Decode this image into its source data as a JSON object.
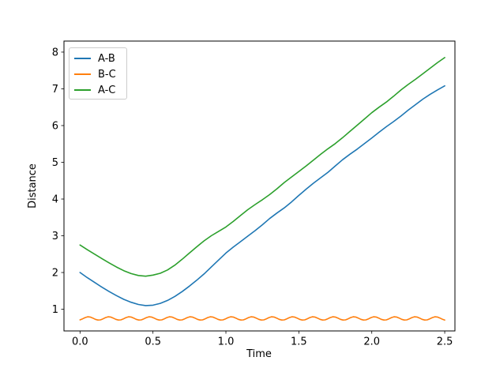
{
  "chart_data": {
    "type": "line",
    "title": "",
    "xlabel": "Time",
    "ylabel": "Distance",
    "xlim": [
      -0.11,
      2.57
    ],
    "ylim": [
      0.41,
      8.3
    ],
    "grid": false,
    "legend": {
      "position": "upper left",
      "entries": [
        "A-B",
        "B-C",
        "A-C"
      ]
    },
    "x_tick_values": [
      0.0,
      0.5,
      1.0,
      1.5,
      2.0,
      2.5
    ],
    "x_tick_labels": [
      "0.0",
      "0.5",
      "1.0",
      "1.5",
      "2.0",
      "2.5"
    ],
    "y_tick_values": [
      1,
      2,
      3,
      4,
      5,
      6,
      7,
      8
    ],
    "y_tick_labels": [
      "1",
      "2",
      "3",
      "4",
      "5",
      "6",
      "7",
      "8"
    ],
    "series": [
      {
        "name": "A-B",
        "color": "#1f77b4",
        "x": [
          0,
          0.05,
          0.1,
          0.15,
          0.2,
          0.25,
          0.3,
          0.35,
          0.4,
          0.45,
          0.5,
          0.55,
          0.6,
          0.65,
          0.7,
          0.75,
          0.8,
          0.85,
          0.9,
          0.95,
          1.0,
          1.05,
          1.1,
          1.15,
          1.2,
          1.25,
          1.3,
          1.35,
          1.4,
          1.45,
          1.5,
          1.55,
          1.6,
          1.65,
          1.7,
          1.75,
          1.8,
          1.85,
          1.9,
          1.95,
          2.0,
          2.05,
          2.1,
          2.15,
          2.2,
          2.25,
          2.3,
          2.35,
          2.4,
          2.45,
          2.5
        ],
        "y": [
          2.0,
          1.86,
          1.73,
          1.6,
          1.48,
          1.37,
          1.27,
          1.19,
          1.13,
          1.1,
          1.11,
          1.16,
          1.24,
          1.35,
          1.48,
          1.63,
          1.79,
          1.96,
          2.15,
          2.34,
          2.53,
          2.69,
          2.84,
          2.99,
          3.14,
          3.3,
          3.47,
          3.62,
          3.76,
          3.92,
          4.1,
          4.27,
          4.43,
          4.58,
          4.73,
          4.9,
          5.07,
          5.22,
          5.36,
          5.51,
          5.66,
          5.82,
          5.97,
          6.11,
          6.26,
          6.42,
          6.57,
          6.72,
          6.85,
          6.97,
          7.08
        ]
      },
      {
        "name": "B-C",
        "color": "#ff7f0e",
        "x": [
          0,
          0.0175,
          0.035,
          0.0525,
          0.07,
          0.0875,
          0.105,
          0.1225,
          0.14,
          0.1575,
          0.175,
          0.1925,
          0.21,
          0.2275,
          0.245,
          0.2625,
          0.28,
          0.2975,
          0.315,
          0.3325,
          0.35,
          0.3675,
          0.385,
          0.4025,
          0.42,
          0.4375,
          0.455,
          0.4725,
          0.49,
          0.5075,
          0.525,
          0.5425,
          0.56,
          0.5775,
          0.595,
          0.6125,
          0.63,
          0.6475,
          0.665,
          0.6825,
          0.7,
          0.7175,
          0.735,
          0.7525,
          0.77,
          0.7875,
          0.805,
          0.8225,
          0.84,
          0.8575,
          0.875,
          0.8925,
          0.91,
          0.9275,
          0.945,
          0.9625,
          0.98,
          0.9975,
          1.015,
          1.0325,
          1.05,
          1.0675,
          1.085,
          1.1025,
          1.12,
          1.1375,
          1.155,
          1.1725,
          1.19,
          1.2075,
          1.225,
          1.2425,
          1.26,
          1.2775,
          1.295,
          1.3125,
          1.33,
          1.3475,
          1.365,
          1.3825,
          1.4,
          1.4175,
          1.435,
          1.4525,
          1.47,
          1.4875,
          1.505,
          1.5225,
          1.54,
          1.5575,
          1.575,
          1.5925,
          1.61,
          1.6275,
          1.645,
          1.6625,
          1.68,
          1.6975,
          1.715,
          1.7325,
          1.75,
          1.7675,
          1.785,
          1.8025,
          1.82,
          1.8375,
          1.855,
          1.8725,
          1.89,
          1.9075,
          1.925,
          1.9425,
          1.96,
          1.9775,
          1.995,
          2.0125,
          2.03,
          2.0475,
          2.065,
          2.0825,
          2.1,
          2.1175,
          2.135,
          2.1525,
          2.17,
          2.1875,
          2.205,
          2.2225,
          2.24,
          2.2575,
          2.275,
          2.2925,
          2.31,
          2.3275,
          2.345,
          2.3625,
          2.38,
          2.3975,
          2.415,
          2.4325,
          2.45,
          2.4675,
          2.485,
          2.5
        ],
        "y": [
          0.712,
          0.74,
          0.774,
          0.794,
          0.788,
          0.76,
          0.726,
          0.706,
          0.712,
          0.74,
          0.774,
          0.794,
          0.788,
          0.76,
          0.726,
          0.706,
          0.712,
          0.74,
          0.774,
          0.794,
          0.788,
          0.76,
          0.726,
          0.706,
          0.712,
          0.74,
          0.774,
          0.794,
          0.788,
          0.76,
          0.726,
          0.706,
          0.712,
          0.74,
          0.774,
          0.794,
          0.788,
          0.76,
          0.726,
          0.706,
          0.712,
          0.74,
          0.774,
          0.794,
          0.788,
          0.76,
          0.726,
          0.706,
          0.712,
          0.74,
          0.774,
          0.794,
          0.788,
          0.76,
          0.726,
          0.706,
          0.712,
          0.74,
          0.774,
          0.794,
          0.788,
          0.76,
          0.726,
          0.706,
          0.712,
          0.74,
          0.774,
          0.794,
          0.788,
          0.76,
          0.726,
          0.706,
          0.712,
          0.74,
          0.774,
          0.794,
          0.788,
          0.76,
          0.726,
          0.706,
          0.712,
          0.74,
          0.774,
          0.794,
          0.788,
          0.76,
          0.726,
          0.706,
          0.712,
          0.74,
          0.774,
          0.794,
          0.788,
          0.76,
          0.726,
          0.706,
          0.712,
          0.74,
          0.774,
          0.794,
          0.788,
          0.76,
          0.726,
          0.706,
          0.712,
          0.74,
          0.774,
          0.794,
          0.788,
          0.76,
          0.726,
          0.706,
          0.712,
          0.74,
          0.774,
          0.794,
          0.788,
          0.76,
          0.726,
          0.706,
          0.712,
          0.74,
          0.774,
          0.794,
          0.788,
          0.76,
          0.726,
          0.706,
          0.712,
          0.74,
          0.774,
          0.794,
          0.788,
          0.76,
          0.726,
          0.706,
          0.712,
          0.74,
          0.774,
          0.794,
          0.788,
          0.76,
          0.726,
          0.706
        ]
      },
      {
        "name": "A-C",
        "color": "#2ca02c",
        "x": [
          0,
          0.05,
          0.1,
          0.15,
          0.2,
          0.25,
          0.3,
          0.35,
          0.4,
          0.45,
          0.5,
          0.55,
          0.6,
          0.65,
          0.7,
          0.75,
          0.8,
          0.85,
          0.9,
          0.95,
          1.0,
          1.05,
          1.1,
          1.15,
          1.2,
          1.25,
          1.3,
          1.35,
          1.4,
          1.45,
          1.5,
          1.55,
          1.6,
          1.65,
          1.7,
          1.75,
          1.8,
          1.85,
          1.9,
          1.95,
          2.0,
          2.05,
          2.1,
          2.15,
          2.2,
          2.25,
          2.3,
          2.35,
          2.4,
          2.45,
          2.5
        ],
        "y": [
          2.75,
          2.62,
          2.5,
          2.38,
          2.26,
          2.15,
          2.05,
          1.97,
          1.92,
          1.9,
          1.93,
          1.98,
          2.07,
          2.2,
          2.36,
          2.53,
          2.7,
          2.86,
          3.0,
          3.12,
          3.24,
          3.39,
          3.55,
          3.71,
          3.85,
          3.98,
          4.12,
          4.28,
          4.45,
          4.6,
          4.75,
          4.9,
          5.06,
          5.22,
          5.37,
          5.51,
          5.67,
          5.84,
          6.01,
          6.18,
          6.35,
          6.5,
          6.64,
          6.8,
          6.97,
          7.12,
          7.26,
          7.41,
          7.56,
          7.71,
          7.85
        ]
      }
    ]
  }
}
